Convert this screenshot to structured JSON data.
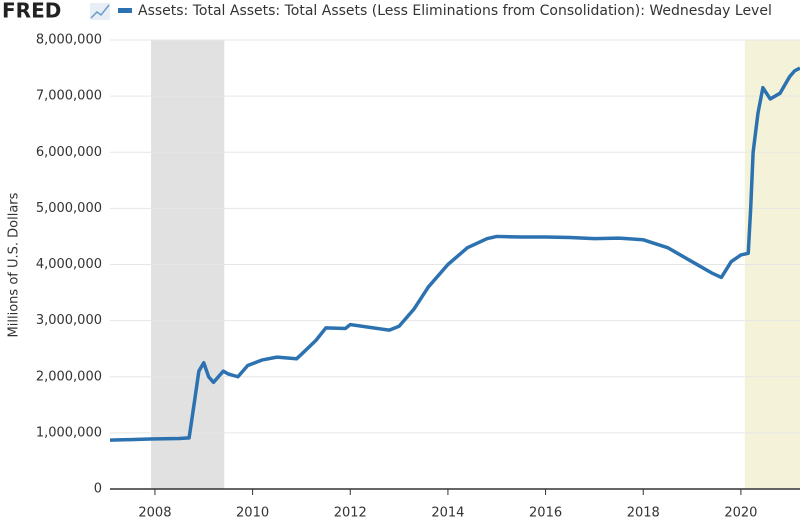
{
  "logo": "FRED",
  "chart_data": {
    "type": "line",
    "y_label": "Millions of U.S. Dollars",
    "xlim": [
      2007.08,
      2021.21
    ],
    "xticks": [
      2008,
      2010,
      2012,
      2014,
      2016,
      2018,
      2020
    ],
    "ylim": [
      0,
      8000000
    ],
    "yticks": [
      0,
      {
        "value": 1000000,
        "label": "1,000,000"
      },
      {
        "value": 2000000,
        "label": "2,000,000"
      },
      {
        "value": 3000000,
        "label": "3,000,000"
      },
      {
        "value": 4000000,
        "label": "4,000,000"
      },
      {
        "value": 5000000,
        "label": "5,000,000"
      },
      {
        "value": 6000000,
        "label": "6,000,000"
      },
      {
        "value": 7000000,
        "label": "7,000,000"
      },
      {
        "value": 8000000,
        "label": "8,000,000"
      }
    ],
    "grid": true,
    "shading": [
      {
        "start": 2007.92,
        "end": 2009.42,
        "color": "#e1e1e1"
      },
      {
        "start": 2020.08,
        "end": 2021.21,
        "color": "#f4f3d9"
      }
    ],
    "x": [
      2007.08,
      2007.5,
      2007.9,
      2008.5,
      2008.7,
      2008.8,
      2008.9,
      2009.0,
      2009.1,
      2009.2,
      2009.4,
      2009.5,
      2009.7,
      2009.9,
      2010.2,
      2010.5,
      2010.9,
      2011.0,
      2011.3,
      2011.5,
      2011.9,
      2012.0,
      2012.4,
      2012.8,
      2013.0,
      2013.3,
      2013.6,
      2014.0,
      2014.4,
      2014.8,
      2015.0,
      2015.5,
      2016.0,
      2016.5,
      2017.0,
      2017.5,
      2018.0,
      2018.5,
      2019.0,
      2019.4,
      2019.6,
      2019.8,
      2020.0,
      2020.15,
      2020.2,
      2020.25,
      2020.35,
      2020.45,
      2020.6,
      2020.8,
      2020.9,
      2021.0,
      2021.1,
      2021.21
    ],
    "series": [
      {
        "name": "Assets: Total Assets: Total Assets (Less Eliminations from Consolidation): Wednesday Level",
        "color": "#2c72b0",
        "values": [
          870000,
          880000,
          890000,
          900000,
          910000,
          1500000,
          2100000,
          2250000,
          2000000,
          1900000,
          2100000,
          2050000,
          2000000,
          2200000,
          2300000,
          2350000,
          2320000,
          2400000,
          2650000,
          2870000,
          2860000,
          2930000,
          2880000,
          2830000,
          2900000,
          3200000,
          3600000,
          4000000,
          4300000,
          4460000,
          4500000,
          4490000,
          4490000,
          4480000,
          4460000,
          4470000,
          4440000,
          4300000,
          4050000,
          3850000,
          3770000,
          4050000,
          4170000,
          4200000,
          5000000,
          6000000,
          6700000,
          7150000,
          6950000,
          7050000,
          7200000,
          7350000,
          7450000,
          7500000
        ]
      }
    ]
  }
}
